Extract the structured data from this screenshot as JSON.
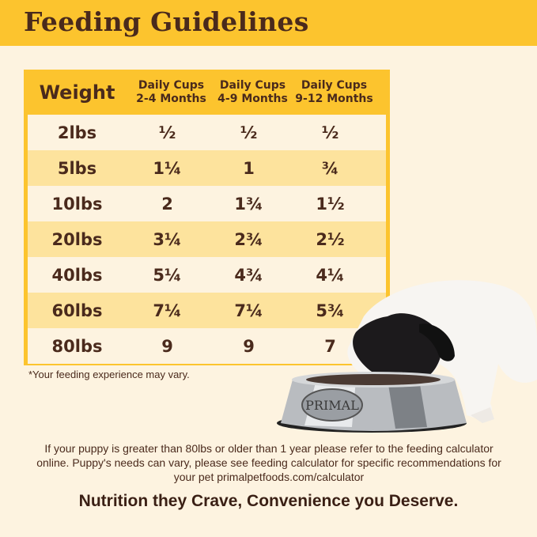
{
  "title": "Feeding Guidelines",
  "table": {
    "headers": [
      {
        "line1": "Weight",
        "line2": ""
      },
      {
        "line1": "Daily Cups",
        "line2": "2-4 Months"
      },
      {
        "line1": "Daily Cups",
        "line2": "4-9 Months"
      },
      {
        "line1": "Daily Cups",
        "line2": "9-12 Months"
      }
    ],
    "rows": [
      [
        "2lbs",
        "½",
        "½",
        "½"
      ],
      [
        "5lbs",
        "1¼",
        "1",
        "¾"
      ],
      [
        "10lbs",
        "2",
        "1¾",
        "1½"
      ],
      [
        "20lbs",
        "3¼",
        "2¾",
        "2½"
      ],
      [
        "40lbs",
        "5¼",
        "4¾",
        "4¼"
      ],
      [
        "60lbs",
        "7¼",
        "7¼",
        "5¾"
      ],
      [
        "80lbs",
        "9",
        "9",
        "7"
      ]
    ]
  },
  "footnote": "*Your feeding experience may vary.",
  "note": "If your puppy is greater than 80lbs or older than 1 year please refer to the feeding calculator online. Puppy's needs can vary, please see feeding calculator for specific recommendations for your pet primalpetfoods.com/calculator",
  "tagline": "Nutrition they Crave, Convenience you Deserve.",
  "bowl_logo": "PRIMAL",
  "colors": {
    "banner": "#fcc42e",
    "background": "#fdf3e0",
    "row_alt": "#fde39d",
    "text": "#4a2a1c"
  }
}
